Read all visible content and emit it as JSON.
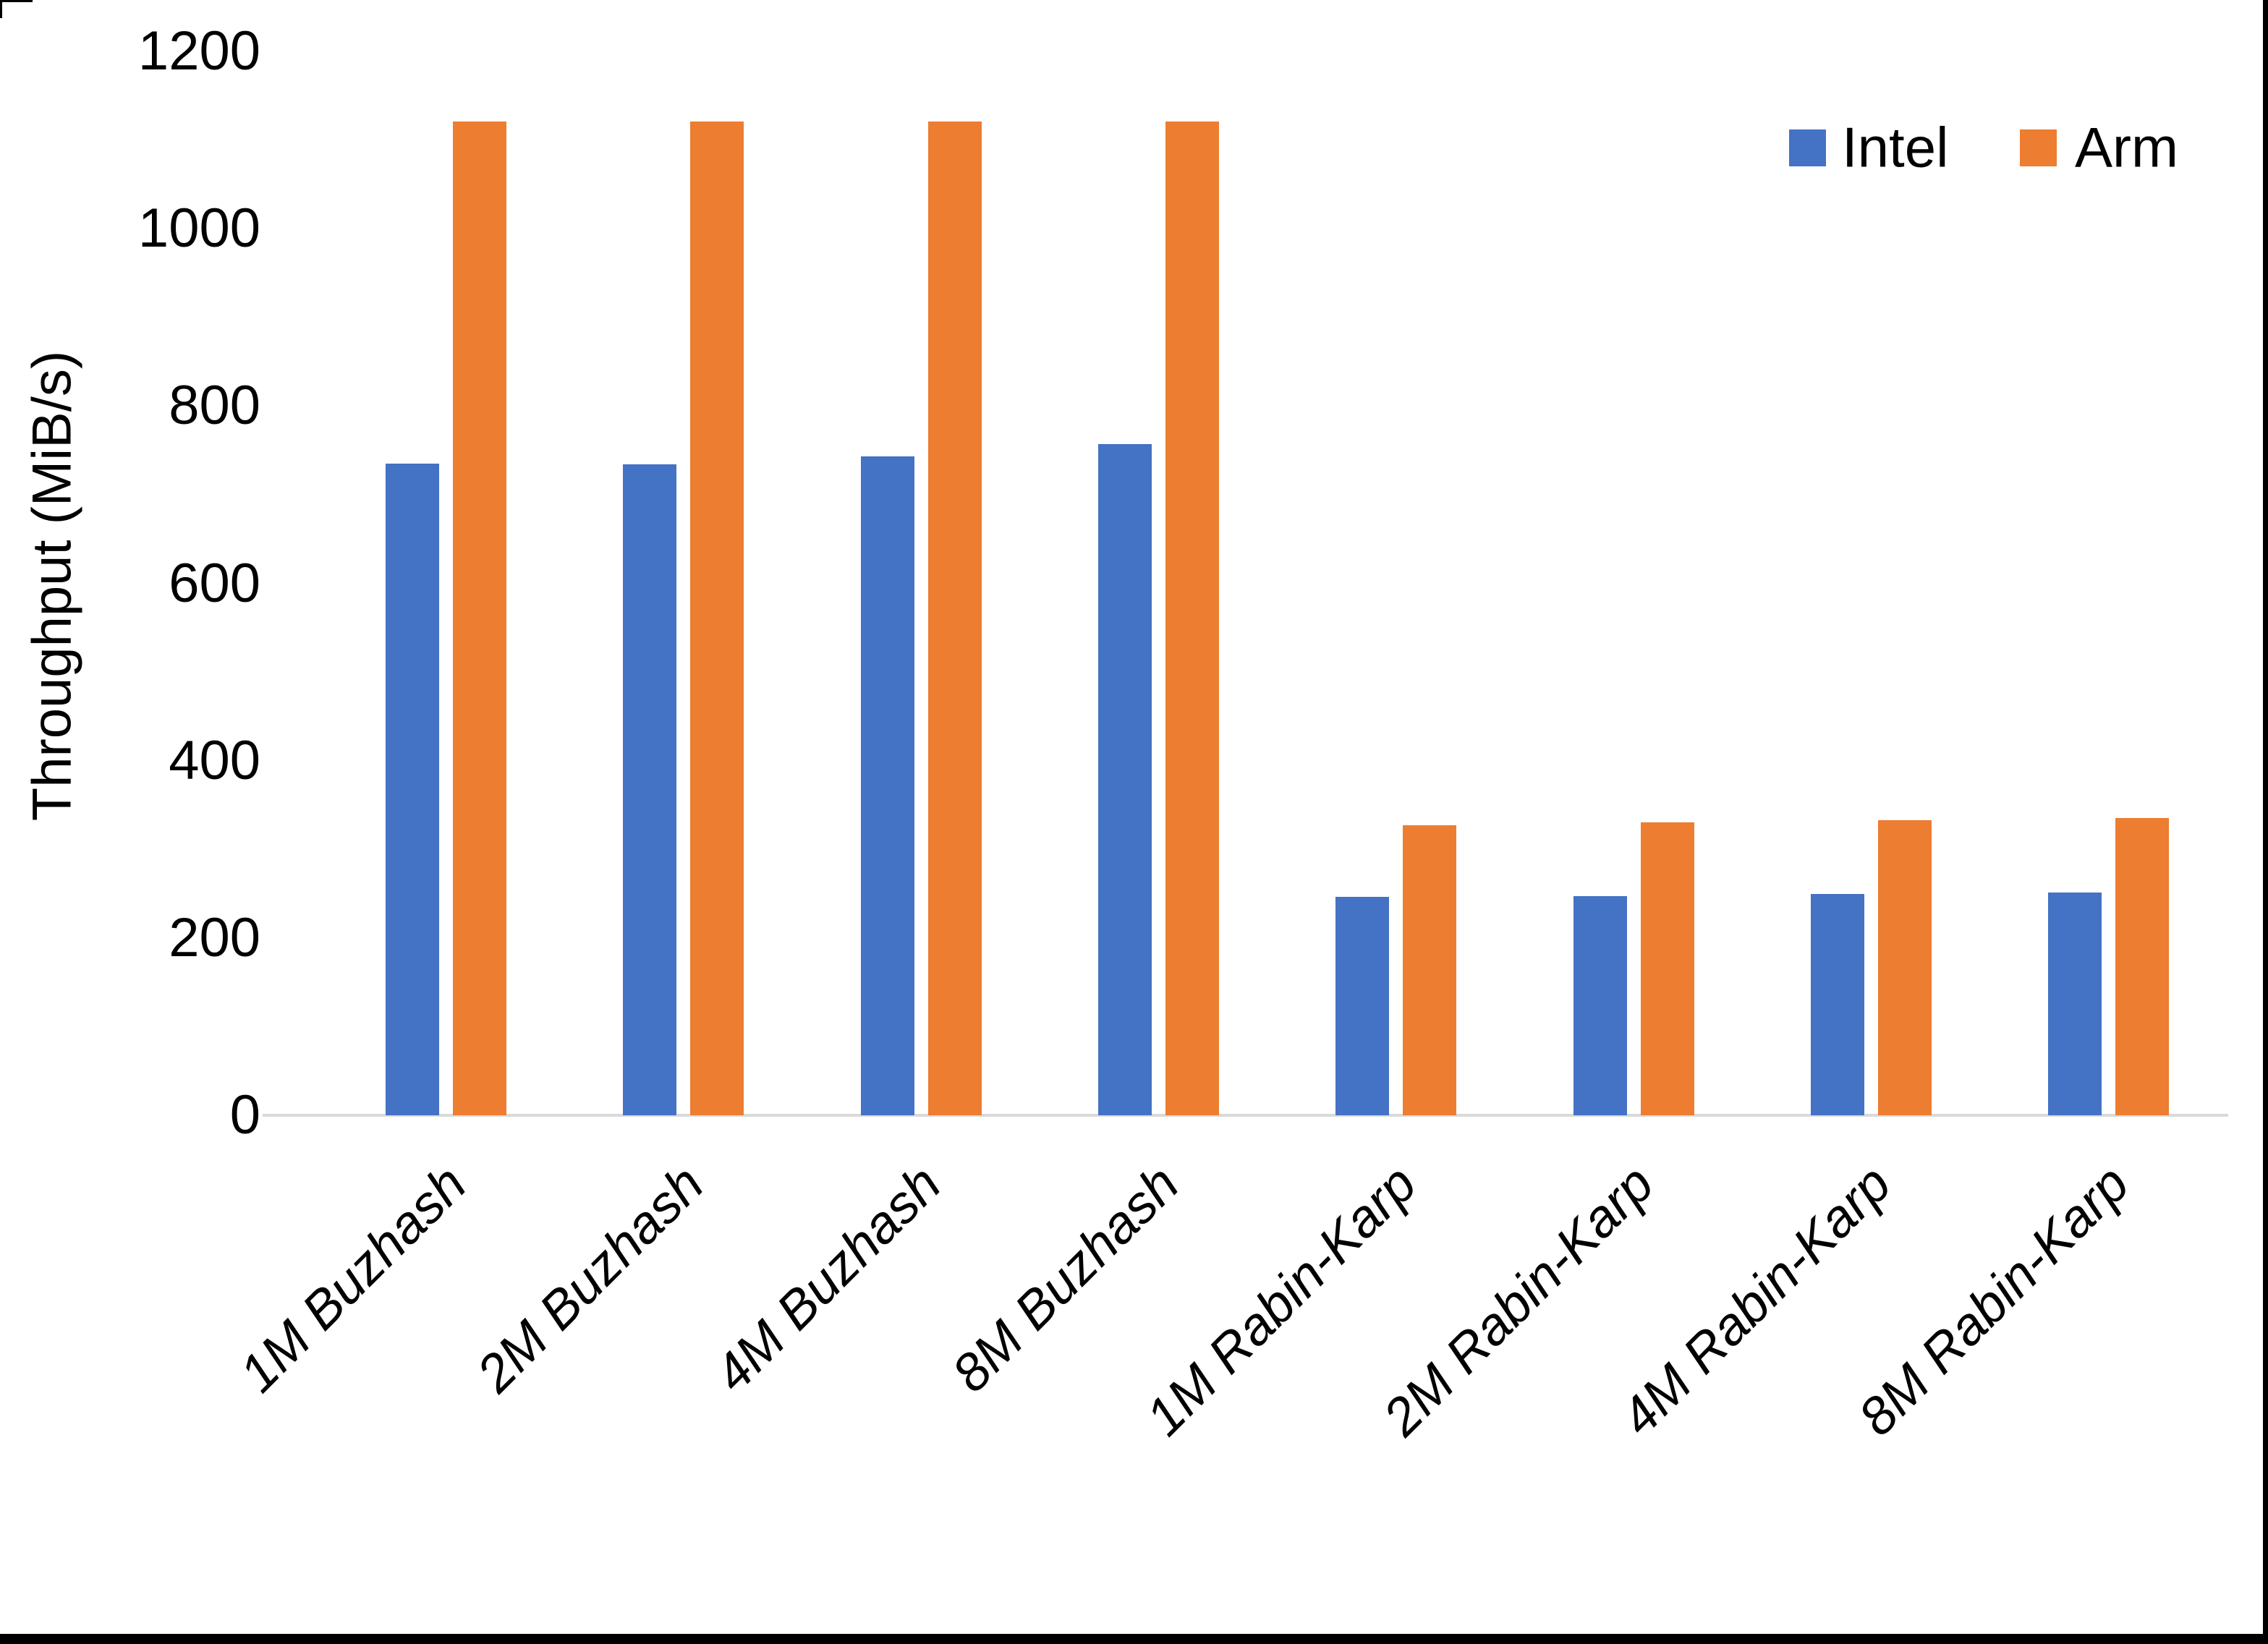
{
  "chart_data": {
    "type": "bar",
    "title": "",
    "categories": [
      "1M Buzhash",
      "2M Buzhash",
      "4M Buzhash",
      "8M Buzhash",
      "1M Rabin-Karp",
      "2M Rabin-Karp",
      "4M Rabin-Karp",
      "8M Rabin-Karp"
    ],
    "series": [
      {
        "name": "Intel",
        "color": "#4472C4",
        "values": [
          735,
          734,
          743,
          757,
          246,
          247,
          250,
          251
        ]
      },
      {
        "name": "Arm",
        "color": "#ED7D31",
        "values": [
          1121,
          1121,
          1121,
          1121,
          327,
          330,
          333,
          335
        ]
      }
    ],
    "xlabel": "",
    "ylabel": "Throughput (MiB/s)",
    "ylim": [
      0,
      1200
    ],
    "yticks": [
      0,
      200,
      400,
      600,
      800,
      1000,
      1200
    ],
    "grid": "off",
    "legend_position": "top-right",
    "axis_line_color": "#d9d9d9",
    "text_color": "#000000"
  }
}
